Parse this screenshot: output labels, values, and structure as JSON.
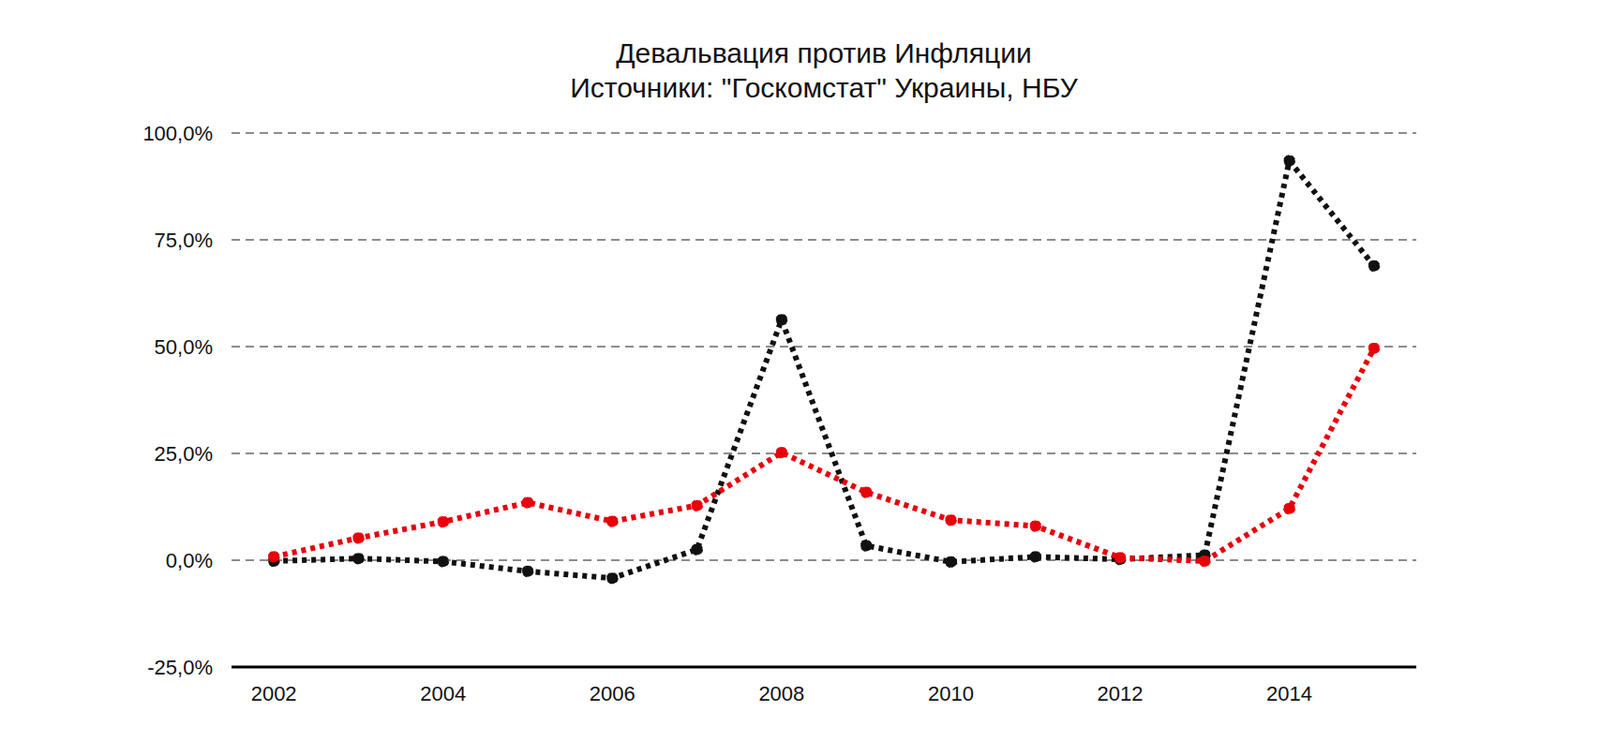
{
  "chart_data": {
    "type": "line",
    "title": "Девальвация против Инфляции",
    "subtitle": "Источники: \"Госкомстат\" Украины, НБУ",
    "x": [
      2002,
      2003,
      2004,
      2005,
      2006,
      2007,
      2008,
      2009,
      2010,
      2011,
      2012,
      2013,
      2014,
      2015
    ],
    "series": [
      {
        "color": "#111111",
        "marker": "circle",
        "line_style": "dotted",
        "values": [
          -0.2,
          0.4,
          -0.3,
          -2.6,
          -4.2,
          2.5,
          56.3,
          3.4,
          -0.4,
          0.8,
          0.2,
          1.2,
          93.5,
          68.9
        ]
      },
      {
        "color": "#e8000b",
        "marker": "circle",
        "line_style": "dotted",
        "values": [
          0.8,
          5.2,
          9.0,
          13.5,
          9.1,
          12.8,
          25.2,
          15.9,
          9.4,
          8.0,
          0.6,
          -0.2,
          12.1,
          49.6
        ]
      }
    ],
    "xlim": [
      2001.5,
      2015.5
    ],
    "xticks": [
      2002,
      2004,
      2006,
      2008,
      2010,
      2012,
      2014
    ],
    "ylim": [
      -25,
      100
    ],
    "yticks": [
      {
        "value": -25,
        "label": "-25,0%"
      },
      {
        "value": 0,
        "label": "0,0%"
      },
      {
        "value": 25,
        "label": "25,0%"
      },
      {
        "value": 50,
        "label": "50,0%"
      },
      {
        "value": 75,
        "label": "75,0%"
      },
      {
        "value": 100,
        "label": "100,0%"
      }
    ],
    "grid": true
  }
}
